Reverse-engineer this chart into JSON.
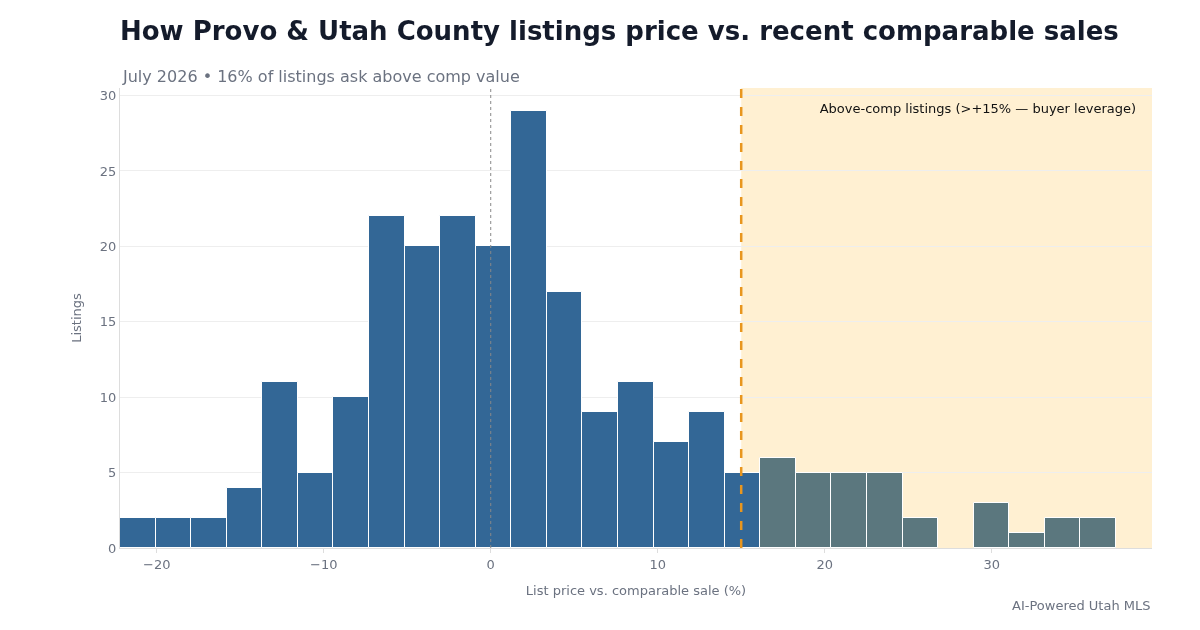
{
  "chart_data": {
    "type": "histogram",
    "title": "How Provo & Utah County listings price vs. recent comparable sales",
    "subtitle": "July 2026 • 16% of listings ask above comp value",
    "xlabel": "List price vs. comparable sale (%)",
    "ylabel": "Listings",
    "bins": [
      -22.2,
      -20.07,
      -17.94,
      -15.81,
      -13.68,
      -11.55,
      -9.42,
      -7.29,
      -5.16,
      -3.03,
      -0.9,
      1.23,
      3.36,
      5.49,
      7.62,
      9.75,
      11.88,
      14.01,
      16.14,
      18.27,
      20.4,
      22.53,
      24.66,
      26.79,
      28.92,
      31.05,
      33.18,
      35.31,
      37.44
    ],
    "values": [
      2,
      2,
      2,
      4,
      11,
      5,
      10,
      22,
      20,
      22,
      20,
      29,
      17,
      9,
      11,
      7,
      9,
      5,
      6,
      5,
      5,
      5,
      2,
      0,
      3,
      1,
      2,
      2
    ],
    "colors": [
      "#336796",
      "#336796",
      "#336796",
      "#336796",
      "#336796",
      "#336796",
      "#336796",
      "#336796",
      "#336796",
      "#336796",
      "#336796",
      "#336796",
      "#336796",
      "#336796",
      "#336796",
      "#336796",
      "#336796",
      "#336796",
      "#5b777e",
      "#5b777e",
      "#5b777e",
      "#5b777e",
      "#5b777e",
      "#5b777e",
      "#5b777e",
      "#5b777e",
      "#5b777e",
      "#5b777e"
    ],
    "xlim": [
      -22.2,
      39.6
    ],
    "ylim": [
      0,
      30.5
    ],
    "xticks": [
      {
        "value": -20,
        "label": "−20"
      },
      {
        "value": -10,
        "label": "−10"
      },
      0,
      10,
      20,
      30
    ],
    "yticks": [
      0,
      5,
      10,
      15,
      20,
      25,
      30
    ],
    "ref_lines": [
      {
        "axis": "x",
        "value": 0,
        "label": null,
        "color": "#888888",
        "line_style": "dotted"
      },
      {
        "axis": "x",
        "value": 15,
        "label": null,
        "color": "#e8961e",
        "line_style": "dashed"
      }
    ],
    "bands": [
      {
        "axis": "x",
        "from": 15,
        "to": 39.6,
        "label": "Above-comp listings (>+15% — buyer leverage)",
        "color": "#fff0d2"
      }
    ],
    "annotations": [
      "AI-Powered Utah MLS"
    ],
    "grid": "y",
    "legend": "top right"
  }
}
